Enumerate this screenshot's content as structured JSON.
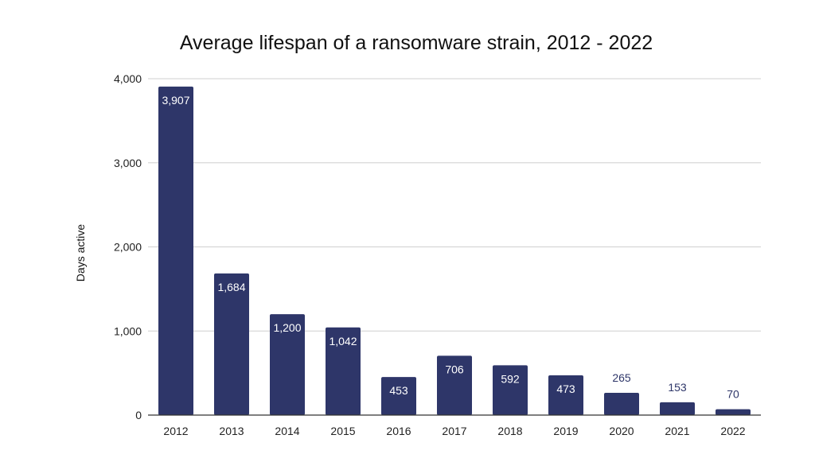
{
  "chart_data": {
    "type": "bar",
    "title": "Average lifespan of a ransomware strain, 2012 - 2022",
    "xlabel": "",
    "ylabel": "Days active",
    "categories": [
      "2012",
      "2013",
      "2014",
      "2015",
      "2016",
      "2017",
      "2018",
      "2019",
      "2020",
      "2021",
      "2022"
    ],
    "values": [
      3907,
      1684,
      1200,
      1042,
      453,
      706,
      592,
      473,
      265,
      153,
      70
    ],
    "data_labels": [
      "3,907",
      "1,684",
      "1,200",
      "1,042",
      "453",
      "706",
      "592",
      "473",
      "265",
      "153",
      "70"
    ],
    "ylim": [
      0,
      4000
    ],
    "yticks": [
      0,
      1000,
      2000,
      3000,
      4000
    ],
    "ytick_labels": [
      "0",
      "1,000",
      "2,000",
      "3,000",
      "4,000"
    ],
    "grid": true,
    "legend": "none",
    "colors": {
      "bar": "#2e3669",
      "label_inside": "#ffffff",
      "label_outside": "#2e3669"
    }
  }
}
